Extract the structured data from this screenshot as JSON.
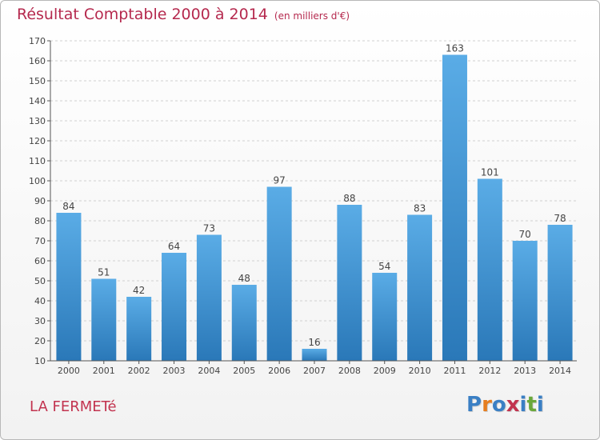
{
  "title": "Résultat Comptable 2000 à 2014",
  "unit_label": "(en milliers d'€)",
  "commune": "LA FERMETé",
  "logo": {
    "text": "Proxiti",
    "letters": [
      "P",
      "r",
      "o",
      "x",
      "i",
      "t",
      "i"
    ],
    "colors": [
      "#3a7fc4",
      "#e67e1f",
      "#3a7fc4",
      "#c2334f",
      "#3a7fc4",
      "#6aa83a",
      "#3a7fc4"
    ]
  },
  "colors": {
    "bar_top": "#5aace6",
    "bar_bottom": "#2a78b8",
    "title": "#b5294e",
    "grid": "#d0d0d0"
  },
  "chart_data": {
    "type": "bar",
    "categories": [
      "2000",
      "2001",
      "2002",
      "2003",
      "2004",
      "2005",
      "2006",
      "2007",
      "2008",
      "2009",
      "2010",
      "2011",
      "2012",
      "2013",
      "2014"
    ],
    "values": [
      84,
      51,
      42,
      64,
      73,
      48,
      97,
      16,
      88,
      54,
      83,
      163,
      101,
      70,
      78
    ],
    "yticks": [
      "10",
      "20",
      "30",
      "40",
      "50",
      "60",
      "70",
      "80",
      "90",
      "100",
      "110",
      "120",
      "130",
      "140",
      "150",
      "160",
      "170"
    ],
    "ylim": [
      10,
      170
    ],
    "grid": true,
    "data_labels": true
  }
}
